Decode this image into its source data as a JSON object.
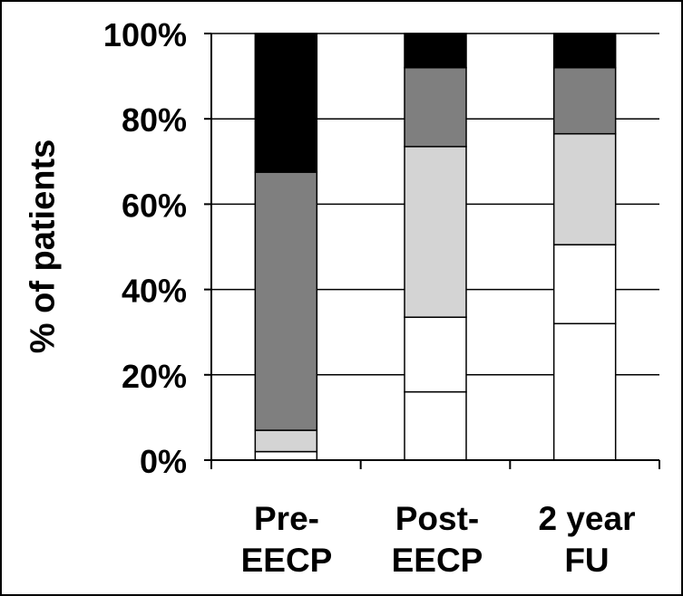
{
  "chart_data": {
    "type": "bar",
    "stacked": true,
    "title": "",
    "ylabel": "% of patients",
    "xlabel": "",
    "ylim": [
      0,
      100
    ],
    "yticks": [
      "0%",
      "20%",
      "40%",
      "60%",
      "80%",
      "100%"
    ],
    "grid": true,
    "legend": "none",
    "categories": [
      {
        "line1": "Pre-",
        "line2": "EECP"
      },
      {
        "line1": "Post-",
        "line2": "EECP"
      },
      {
        "line1": "2 year",
        "line2": "FU"
      }
    ],
    "series": [
      {
        "color": "#ffffff",
        "values": [
          2,
          16,
          32
        ]
      },
      {
        "color": "#ffffff",
        "values": [
          0,
          17.5,
          18.5
        ]
      },
      {
        "color": "#d4d4d4",
        "values": [
          5,
          40,
          26
        ]
      },
      {
        "color": "#7f7f7f",
        "values": [
          60.5,
          18.5,
          15.5
        ]
      },
      {
        "color": "#000000",
        "values": [
          32.5,
          8,
          8
        ]
      }
    ]
  }
}
